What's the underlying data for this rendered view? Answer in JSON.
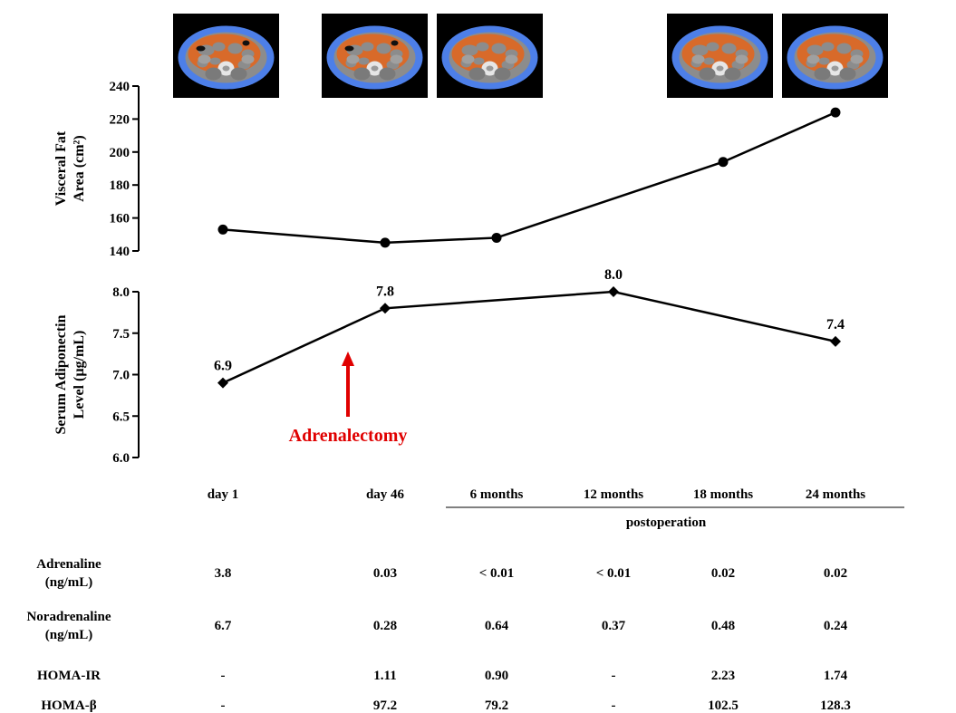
{
  "ct_scans": {
    "alt": "Abdominal CT scan slice with visceral fat highlighted",
    "positions": [
      "day 1",
      "day 46",
      "6 months",
      "18 months",
      "24 months"
    ]
  },
  "colors": {
    "ct_background": "#000000",
    "ct_subcutaneous_fat": "#4d7fe8",
    "ct_visceral_fat": "#d86a2a",
    "ct_soft_tissue": "#8c8c8c",
    "ct_bone": "#e6e6e6",
    "line": "#000000",
    "arrow": "#e00000"
  },
  "chart_data": [
    {
      "type": "line",
      "ylabel_lines": [
        "Visceral Fat",
        "Area (cm²)"
      ],
      "ylim": [
        140,
        240
      ],
      "yticks": [
        140,
        160,
        180,
        200,
        220,
        240
      ],
      "x": [
        "day 1",
        "day 46",
        "6 months",
        "12 months",
        "18 months",
        "24 months"
      ],
      "series": [
        {
          "marker": "circle",
          "points": [
            {
              "x": "day 1",
              "y": 153
            },
            {
              "x": "day 46",
              "y": 145
            },
            {
              "x": "6 months",
              "y": 148
            },
            {
              "x": "18 months",
              "y": 194
            },
            {
              "x": "24 months",
              "y": 224
            }
          ]
        }
      ]
    },
    {
      "type": "line",
      "ylabel_lines": [
        "Serum Adiponectin",
        "Level  (µg/mL)"
      ],
      "ylim": [
        6.0,
        8.0
      ],
      "yticks": [
        6.0,
        6.5,
        7.0,
        7.5,
        8.0
      ],
      "x": [
        "day 1",
        "day 46",
        "6 months",
        "12 months",
        "18 months",
        "24 months"
      ],
      "series": [
        {
          "marker": "diamond",
          "points": [
            {
              "x": "day 1",
              "y": 6.9,
              "label": "6.9"
            },
            {
              "x": "day 46",
              "y": 7.8,
              "label": "7.8"
            },
            {
              "x": "12 months",
              "y": 8.0,
              "label": "8.0"
            },
            {
              "x": "24 months",
              "y": 7.4,
              "label": "7.4"
            }
          ]
        }
      ],
      "annotation": {
        "text": "Adrenalectomy",
        "between": [
          "day 1",
          "day 46"
        ],
        "color": "#e00000"
      }
    }
  ],
  "timepoints": [
    "day 1",
    "day 46",
    "6 months",
    "12 months",
    "18 months",
    "24 months"
  ],
  "postoperation_label": "postoperation",
  "table": {
    "rows": [
      {
        "label_lines": [
          "Adrenaline",
          "(ng/mL)"
        ],
        "values": [
          "3.8",
          "0.03",
          "< 0.01",
          "< 0.01",
          "0.02",
          "0.02"
        ]
      },
      {
        "label_lines": [
          "Noradrenaline",
          "(ng/mL)"
        ],
        "values": [
          "6.7",
          "0.28",
          "0.64",
          "0.37",
          "0.48",
          "0.24"
        ]
      },
      {
        "label_lines": [
          "HOMA-IR"
        ],
        "values": [
          "-",
          "1.11",
          "0.90",
          "-",
          "2.23",
          "1.74"
        ]
      },
      {
        "label_lines": [
          "HOMA-β"
        ],
        "values": [
          "-",
          "97.2",
          "79.2",
          "-",
          "102.5",
          "128.3"
        ]
      }
    ]
  }
}
